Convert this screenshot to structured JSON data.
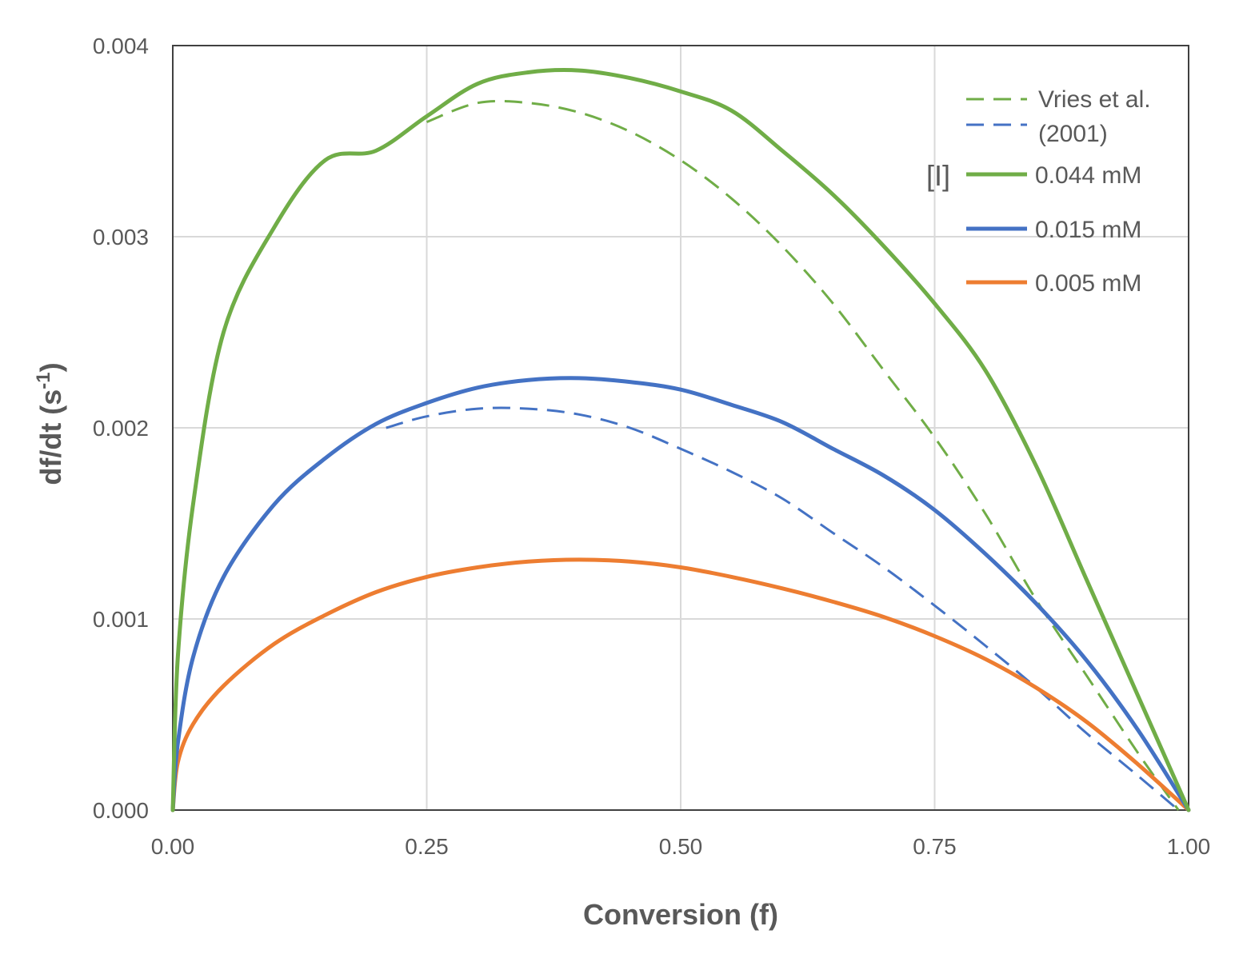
{
  "chart_data": {
    "type": "line",
    "xlabel": "Conversion (f)",
    "ylabel": "df/dt (s",
    "ylabel_sup": "-1",
    "ylabel_close": ")",
    "xlim": [
      0,
      1
    ],
    "ylim": [
      0,
      0.004
    ],
    "x_ticks": [
      "0.00",
      "0.25",
      "0.50",
      "0.75",
      "1.00"
    ],
    "y_ticks": [
      "0.000",
      "0.001",
      "0.002",
      "0.003",
      "0.004"
    ],
    "grid": true,
    "legend": {
      "placement": "top-right",
      "group_label": "[I]",
      "reference_label_line1": "Vries et al.",
      "reference_label_line2": "(2001)"
    },
    "series": [
      {
        "name": "0.044 mM",
        "color": "#70AD47",
        "style": "solid",
        "x": [
          0,
          0.005,
          0.02,
          0.05,
          0.1,
          0.15,
          0.2,
          0.25,
          0.3,
          0.35,
          0.4,
          0.45,
          0.5,
          0.55,
          0.6,
          0.65,
          0.7,
          0.75,
          0.8,
          0.85,
          0.9,
          0.95,
          1.0
        ],
        "y": [
          0,
          0.0008,
          0.0016,
          0.0025,
          0.00305,
          0.0034,
          0.00345,
          0.00363,
          0.0038,
          0.00386,
          0.00387,
          0.00383,
          0.00376,
          0.00366,
          0.00345,
          0.00322,
          0.00295,
          0.00265,
          0.0023,
          0.0018,
          0.0012,
          0.0006,
          0
        ]
      },
      {
        "name": "0.015 mM",
        "color": "#4472C4",
        "style": "solid",
        "x": [
          0,
          0.005,
          0.02,
          0.05,
          0.1,
          0.15,
          0.2,
          0.25,
          0.3,
          0.35,
          0.4,
          0.45,
          0.5,
          0.55,
          0.6,
          0.65,
          0.7,
          0.75,
          0.8,
          0.85,
          0.9,
          0.95,
          1.0
        ],
        "y": [
          0,
          0.00035,
          0.0008,
          0.00122,
          0.0016,
          0.00184,
          0.00202,
          0.00213,
          0.00221,
          0.00225,
          0.00226,
          0.00224,
          0.0022,
          0.00212,
          0.00203,
          0.00189,
          0.00175,
          0.00157,
          0.00134,
          0.00108,
          0.00078,
          0.00042,
          0
        ]
      },
      {
        "name": "0.005 mM",
        "color": "#ED7D31",
        "style": "solid",
        "x": [
          0,
          0.005,
          0.02,
          0.05,
          0.1,
          0.15,
          0.2,
          0.25,
          0.3,
          0.35,
          0.4,
          0.45,
          0.5,
          0.55,
          0.6,
          0.65,
          0.7,
          0.75,
          0.8,
          0.85,
          0.9,
          0.95,
          1.0
        ],
        "y": [
          0,
          0.00025,
          0.00045,
          0.00065,
          0.00087,
          0.00102,
          0.00114,
          0.00122,
          0.00127,
          0.0013,
          0.00131,
          0.0013,
          0.00127,
          0.00122,
          0.00116,
          0.00109,
          0.00101,
          0.00091,
          0.00079,
          0.00064,
          0.00046,
          0.00024,
          0
        ]
      },
      {
        "name": "Vries et al. 0.044 mM",
        "color": "#70AD47",
        "style": "dashed",
        "x": [
          0.25,
          0.3,
          0.35,
          0.4,
          0.45,
          0.5,
          0.55,
          0.6,
          0.65,
          0.7,
          0.75,
          0.8,
          0.85,
          0.9,
          0.95,
          0.99
        ],
        "y": [
          0.0036,
          0.0037,
          0.0037,
          0.00365,
          0.00355,
          0.0034,
          0.0032,
          0.00295,
          0.00265,
          0.0023,
          0.00195,
          0.00155,
          0.0011,
          0.0007,
          0.0003,
          0
        ]
      },
      {
        "name": "Vries et al. 0.015 mM",
        "color": "#4472C4",
        "style": "dashed",
        "x": [
          0.21,
          0.25,
          0.3,
          0.35,
          0.4,
          0.45,
          0.5,
          0.55,
          0.6,
          0.65,
          0.7,
          0.75,
          0.8,
          0.85,
          0.9,
          0.95,
          0.99
        ],
        "y": [
          0.002,
          0.00206,
          0.0021,
          0.0021,
          0.00207,
          0.002,
          0.00189,
          0.00177,
          0.00163,
          0.00145,
          0.00127,
          0.00107,
          0.00086,
          0.00064,
          0.0004,
          0.00018,
          0
        ]
      }
    ]
  }
}
